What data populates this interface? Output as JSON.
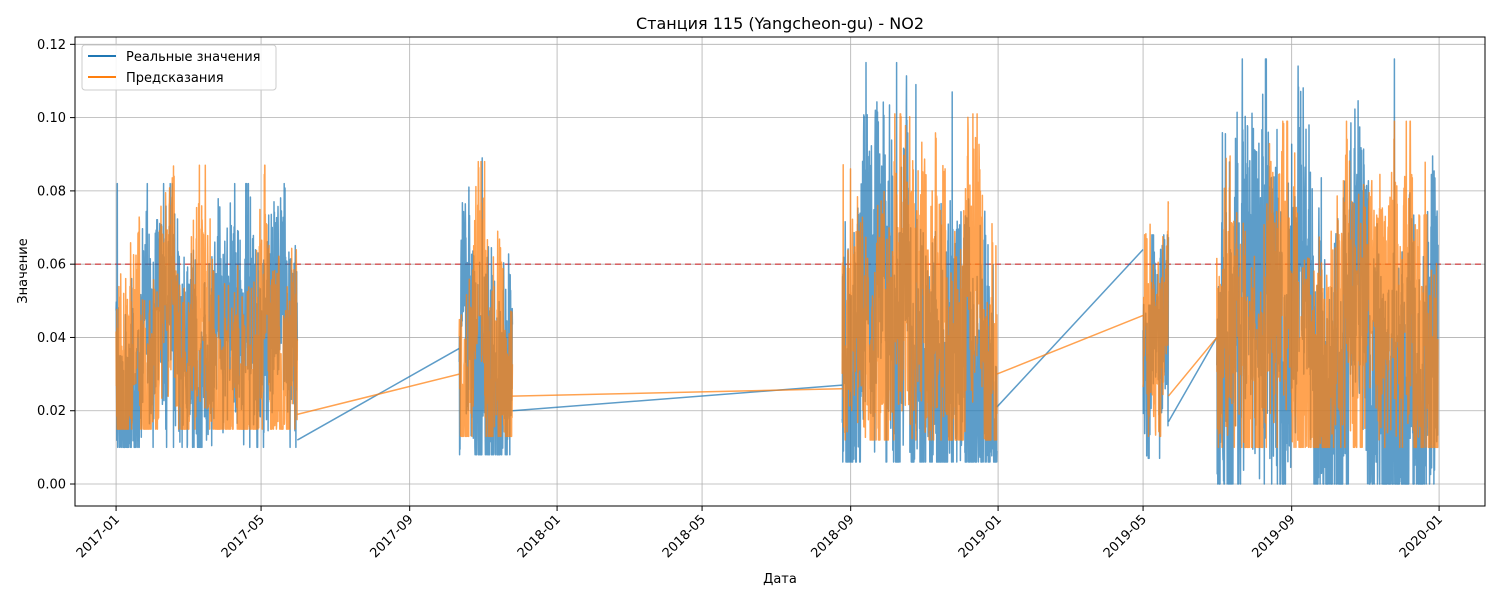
{
  "chart_data": {
    "type": "line",
    "title": "Станция 115 (Yangcheon-gu) - NO2",
    "xlabel": "Дата",
    "ylabel": "Значение",
    "xlim": [
      "2016-11-28",
      "2020-02-08"
    ],
    "ylim": [
      -0.006,
      0.122
    ],
    "grid": true,
    "legend_position": "top-left",
    "x_ticks": [
      "2017-01",
      "2017-05",
      "2017-09",
      "2018-01",
      "2018-05",
      "2018-09",
      "2019-01",
      "2019-05",
      "2019-09",
      "2020-01"
    ],
    "y_ticks": [
      "0.00",
      "0.02",
      "0.04",
      "0.06",
      "0.08",
      "0.10",
      "0.12"
    ],
    "y_tick_values": [
      0,
      0.02,
      0.04,
      0.06,
      0.08,
      0.1,
      0.12
    ],
    "threshold": {
      "value": 0.06,
      "color": "#d62728",
      "style": "dashed"
    },
    "series": [
      {
        "name": "Реальные значения",
        "color": "#1f77b4",
        "segments": [
          {
            "start": "2017-01-01",
            "end": "2017-05-31",
            "min": 0.01,
            "max": 0.082,
            "mean": 0.032
          },
          {
            "start": "2017-10-12",
            "end": "2017-11-25",
            "min": 0.008,
            "max": 0.089,
            "mean": 0.033
          },
          {
            "start": "2018-08-25",
            "end": "2018-12-31",
            "min": 0.006,
            "max": 0.115,
            "mean": 0.038
          },
          {
            "start": "2019-05-01",
            "end": "2019-05-22",
            "min": 0.007,
            "max": 0.068,
            "mean": 0.03
          },
          {
            "start": "2019-07-01",
            "end": "2019-12-31",
            "min": 0.0,
            "max": 0.116,
            "mean": 0.03
          }
        ],
        "connectors": [
          {
            "from": [
              "2017-05-31",
              0.012
            ],
            "to": [
              "2017-10-12",
              0.037
            ]
          },
          {
            "from": [
              "2017-11-25",
              0.02
            ],
            "to": [
              "2018-08-25",
              0.027
            ]
          },
          {
            "from": [
              "2018-12-31",
              0.021
            ],
            "to": [
              "2019-05-01",
              0.064
            ]
          },
          {
            "from": [
              "2019-05-22",
              0.017
            ],
            "to": [
              "2019-07-01",
              0.04
            ]
          }
        ],
        "peaks": [
          [
            "2017-01-02",
            0.082
          ],
          [
            "2017-10-31",
            0.089
          ],
          [
            "2018-10-09",
            0.115
          ],
          [
            "2018-10-25",
            0.109
          ],
          [
            "2018-11-24",
            0.107
          ],
          [
            "2019-11-25",
            0.116
          ]
        ]
      },
      {
        "name": "Предсказания",
        "color": "#ff7f0e",
        "segments": [
          {
            "start": "2017-01-01",
            "end": "2017-05-31",
            "min": 0.015,
            "max": 0.087,
            "mean": 0.035
          },
          {
            "start": "2017-10-12",
            "end": "2017-11-25",
            "min": 0.013,
            "max": 0.088,
            "mean": 0.035
          },
          {
            "start": "2018-08-25",
            "end": "2018-12-31",
            "min": 0.012,
            "max": 0.101,
            "mean": 0.04
          },
          {
            "start": "2019-05-01",
            "end": "2019-05-22",
            "min": 0.013,
            "max": 0.077,
            "mean": 0.032
          },
          {
            "start": "2019-07-01",
            "end": "2019-12-31",
            "min": 0.01,
            "max": 0.099,
            "mean": 0.034
          }
        ],
        "connectors": [
          {
            "from": [
              "2017-05-31",
              0.019
            ],
            "to": [
              "2017-10-12",
              0.03
            ]
          },
          {
            "from": [
              "2017-11-25",
              0.024
            ],
            "to": [
              "2018-08-25",
              0.026
            ]
          },
          {
            "from": [
              "2018-12-31",
              0.03
            ],
            "to": [
              "2019-05-01",
              0.046
            ]
          },
          {
            "from": [
              "2019-05-22",
              0.024
            ],
            "to": [
              "2019-07-01",
              0.04
            ]
          }
        ],
        "peaks": [
          [
            "2017-03-11",
            0.087
          ],
          [
            "2017-11-02",
            0.088
          ],
          [
            "2018-10-12",
            0.101
          ],
          [
            "2019-11-25",
            0.099
          ]
        ]
      }
    ]
  }
}
